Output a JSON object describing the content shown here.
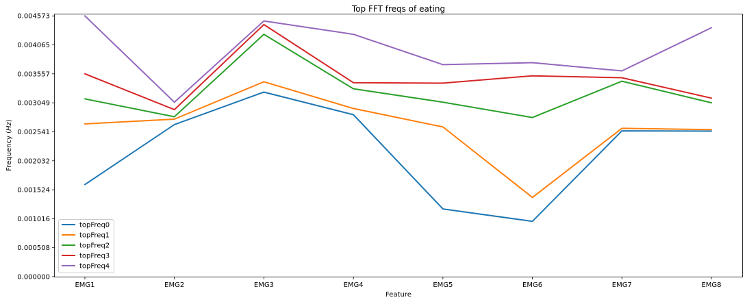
{
  "chart_data": {
    "type": "line",
    "title": "Top FFT freqs of eating",
    "xlabel": "Feature",
    "ylabel_prefix": "Frequency (",
    "ylabel_unit": "Hz",
    "ylabel_suffix": ")",
    "categories": [
      "EMG1",
      "EMG2",
      "EMG3",
      "EMG4",
      "EMG5",
      "EMG6",
      "EMG7",
      "EMG8"
    ],
    "yticks": [
      "0.000000",
      "0.000508",
      "0.001016",
      "0.001524",
      "0.002032",
      "0.002541",
      "0.003049",
      "0.003557",
      "0.004065",
      "0.004573"
    ],
    "ylim": [
      0,
      0.0046
    ],
    "grid": false,
    "legend_position": "lower-left",
    "series": [
      {
        "name": "topFreq0",
        "color": "#1f77b4",
        "values": [
          0.001616,
          0.002667,
          0.003237,
          0.002841,
          0.001188,
          0.00097,
          0.002557,
          0.002552
        ]
      },
      {
        "name": "topFreq1",
        "color": "#ff7f0e",
        "values": [
          0.002679,
          0.002762,
          0.003418,
          0.00295,
          0.002625,
          0.00139,
          0.002601,
          0.002579
        ]
      },
      {
        "name": "topFreq2",
        "color": "#2ca02c",
        "values": [
          0.003118,
          0.002805,
          0.00425,
          0.003296,
          0.00306,
          0.002791,
          0.003428,
          0.003049
        ]
      },
      {
        "name": "topFreq3",
        "color": "#d62728",
        "values": [
          0.003557,
          0.002929,
          0.004421,
          0.003402,
          0.003394,
          0.003523,
          0.003489,
          0.003131
        ]
      },
      {
        "name": "topFreq4",
        "color": "#9467bd",
        "values": [
          0.004573,
          0.00306,
          0.004485,
          0.00425,
          0.003719,
          0.003753,
          0.003609,
          0.004366
        ]
      }
    ]
  }
}
